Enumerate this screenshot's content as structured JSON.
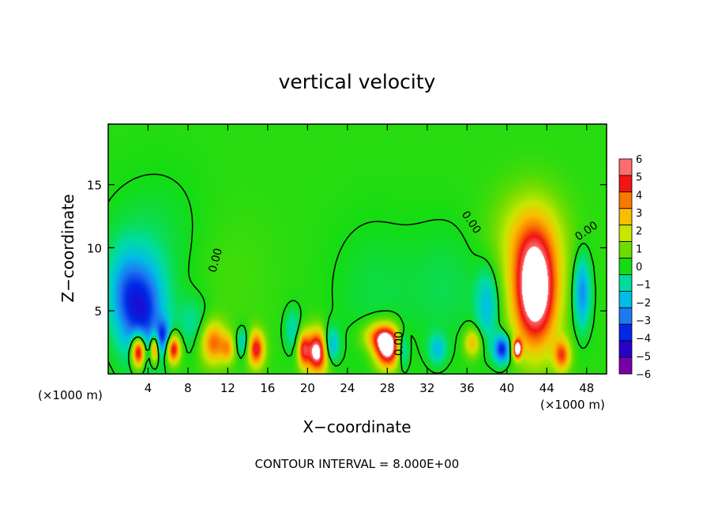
{
  "chart_data": {
    "type": "heatmap",
    "title": "vertical velocity",
    "xlabel": "X−coordinate",
    "ylabel": "Z−coordinate",
    "x_unit": "(×1000 m)",
    "x_unit_right": "(×1000 m)",
    "footer": "CONTOUR INTERVAL = 8.000E+00",
    "xlim": [
      0,
      50
    ],
    "ylim": [
      0,
      19.8
    ],
    "x_ticks": [
      "4",
      "8",
      "12",
      "16",
      "20",
      "24",
      "28",
      "32",
      "36",
      "40",
      "44",
      "48"
    ],
    "y_ticks": [
      "5",
      "10",
      "15"
    ],
    "colorbar_range": [
      -6,
      6
    ],
    "colorbar_labels": [
      "6",
      "5",
      "4",
      "3",
      "2",
      "1",
      "0",
      "−1",
      "−2",
      "−3",
      "−4",
      "−5",
      "−6"
    ],
    "contour_labels": [
      "0.00",
      "0.00",
      "0.00",
      "0.00"
    ],
    "background_value": 0.2,
    "features": [
      {
        "x": 42.8,
        "z": 6.5,
        "sx": 1.6,
        "sz": 3.2,
        "value": 7.5
      },
      {
        "x": 42.2,
        "z": 11.0,
        "sx": 2.6,
        "sz": 2.6,
        "value": 2.0
      },
      {
        "x": 45.5,
        "z": 1.5,
        "sx": 0.6,
        "sz": 0.9,
        "value": 4.0
      },
      {
        "x": 39.5,
        "z": 2.0,
        "sx": 0.6,
        "sz": 0.8,
        "value": -4.5
      },
      {
        "x": 41.0,
        "z": 2.0,
        "sx": 0.3,
        "sz": 0.5,
        "value": 7.0
      },
      {
        "x": 47.5,
        "z": 6.5,
        "sx": 0.6,
        "sz": 2.0,
        "value": -3.0
      },
      {
        "x": 38.0,
        "z": 5.5,
        "sx": 0.8,
        "sz": 2.0,
        "value": -2.0
      },
      {
        "x": 36.5,
        "z": 2.5,
        "sx": 0.6,
        "sz": 0.8,
        "value": 3.0
      },
      {
        "x": 33.0,
        "z": 2.0,
        "sx": 0.6,
        "sz": 0.8,
        "value": -2.0
      },
      {
        "x": 28.0,
        "z": 2.0,
        "sx": 0.9,
        "sz": 1.1,
        "value": 6.5
      },
      {
        "x": 27.2,
        "z": 3.0,
        "sx": 1.2,
        "sz": 0.8,
        "value": 3.5
      },
      {
        "x": 29.5,
        "z": 2.0,
        "sx": 0.4,
        "sz": 1.0,
        "value": -2.5
      },
      {
        "x": 21.0,
        "z": 1.8,
        "sx": 0.9,
        "sz": 1.2,
        "value": 7.0
      },
      {
        "x": 22.2,
        "z": 2.2,
        "sx": 0.6,
        "sz": 1.0,
        "value": -4.0
      },
      {
        "x": 19.5,
        "z": 2.0,
        "sx": 0.4,
        "sz": 1.0,
        "value": 3.5
      },
      {
        "x": 18.5,
        "z": 3.5,
        "sx": 0.6,
        "sz": 1.2,
        "value": -1.5
      },
      {
        "x": 14.8,
        "z": 2.0,
        "sx": 0.6,
        "sz": 1.0,
        "value": 5.0
      },
      {
        "x": 13.5,
        "z": 2.5,
        "sx": 0.5,
        "sz": 0.8,
        "value": -2.0
      },
      {
        "x": 10.5,
        "z": 2.5,
        "sx": 0.9,
        "sz": 1.2,
        "value": 4.0
      },
      {
        "x": 12.0,
        "z": 2.0,
        "sx": 0.5,
        "sz": 0.8,
        "value": 2.5
      },
      {
        "x": 3.5,
        "z": 5.0,
        "sx": 1.5,
        "sz": 2.8,
        "value": -4.0
      },
      {
        "x": 1.5,
        "z": 6.5,
        "sx": 1.2,
        "sz": 2.5,
        "value": -2.0
      },
      {
        "x": 3.0,
        "z": 1.8,
        "sx": 0.5,
        "sz": 0.9,
        "value": 7.0
      },
      {
        "x": 4.6,
        "z": 2.0,
        "sx": 0.3,
        "sz": 0.8,
        "value": 5.0
      },
      {
        "x": 6.5,
        "z": 2.0,
        "sx": 0.5,
        "sz": 0.8,
        "value": 5.5
      },
      {
        "x": 5.5,
        "z": 3.0,
        "sx": 0.5,
        "sz": 0.9,
        "value": -3.0
      },
      {
        "x": 8.5,
        "z": 4.0,
        "sx": 1.2,
        "sz": 1.5,
        "value": -1.2
      },
      {
        "x": 11.5,
        "z": 8.0,
        "sx": 3.5,
        "sz": 4.0,
        "value": 0.4
      },
      {
        "x": 26.5,
        "z": 6.5,
        "sx": 3.0,
        "sz": 4.0,
        "value": -0.5
      },
      {
        "x": 5.0,
        "z": 10.0,
        "sx": 4.0,
        "sz": 4.0,
        "value": -0.6
      },
      {
        "x": 34.0,
        "z": 7.0,
        "sx": 3.0,
        "sz": 3.5,
        "value": -0.6
      }
    ]
  }
}
